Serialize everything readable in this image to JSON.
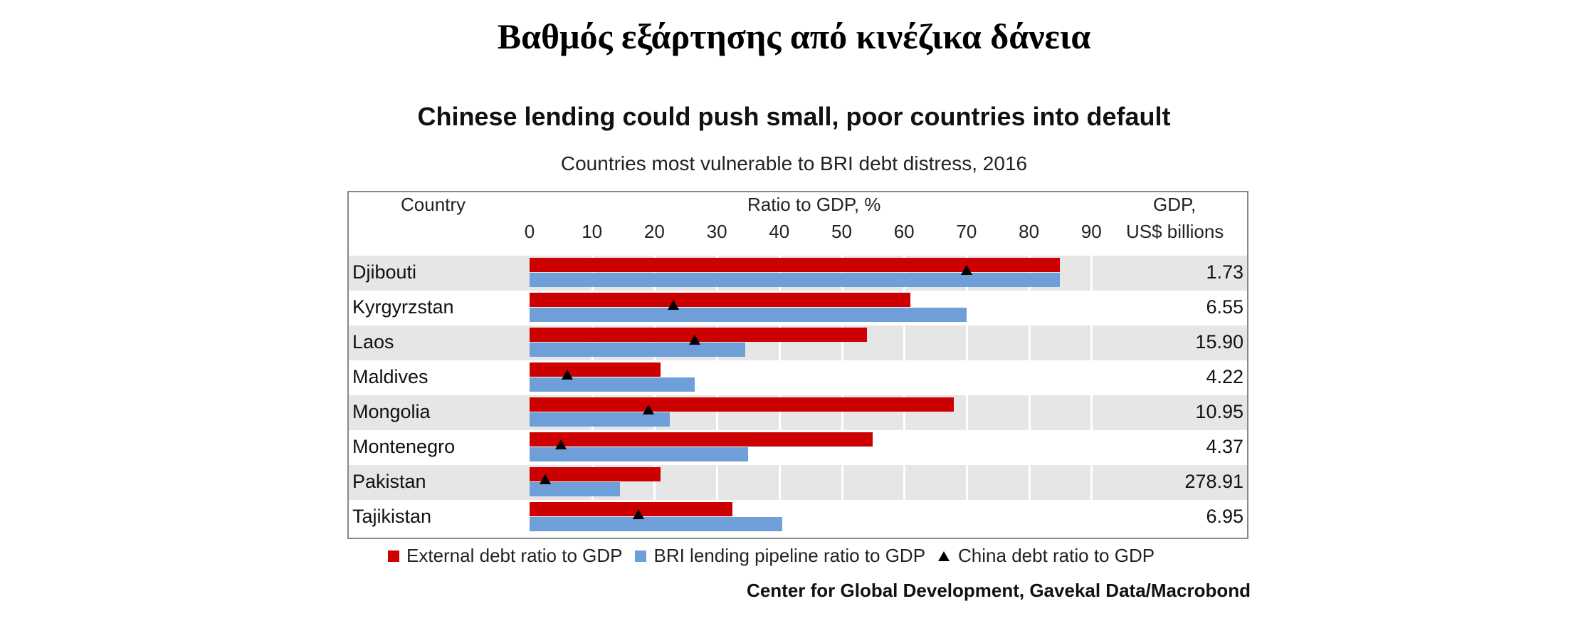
{
  "page": {
    "heading": "Βαθμός εξάρτησης από κινέζικα δάνεια"
  },
  "chart_data": {
    "type": "bar",
    "orientation": "horizontal",
    "title": "Chinese lending could push small, poor countries into default",
    "subtitle": "Countries most vulnerable to BRI debt distress, 2016",
    "column_headers": {
      "country": "Country",
      "ratio": "Ratio to GDP, %",
      "gdp_line1": "GDP,",
      "gdp_line2": "US$ billions"
    },
    "x_ticks": [
      "0",
      "10",
      "20",
      "30",
      "40",
      "50",
      "60",
      "70",
      "80",
      "90"
    ],
    "xlim": [
      0,
      90
    ],
    "grid": true,
    "categories": [
      "Djibouti",
      "Kyrgyrzstan",
      "Laos",
      "Maldives",
      "Mongolia",
      "Montenegro",
      "Pakistan",
      "Tajikistan"
    ],
    "series": [
      {
        "name": "External debt ratio to GDP",
        "color": "#cc0000",
        "values": [
          85,
          61,
          54,
          21,
          68,
          55,
          21,
          32.5
        ]
      },
      {
        "name": "BRI lending pipeline ratio to GDP",
        "color": "#6f9fd8",
        "values": [
          85,
          70,
          34.5,
          26.5,
          22.5,
          35,
          14.5,
          40.5
        ]
      },
      {
        "name": "China debt ratio to GDP",
        "color": "#000000",
        "marker": "triangle",
        "values": [
          70,
          23,
          26.5,
          6,
          19,
          5,
          2.5,
          17.5
        ]
      }
    ],
    "gdp_values": [
      "1.73",
      "6.55",
      "15.90",
      "4.22",
      "10.95",
      "4.37",
      "278.91",
      "6.95"
    ],
    "legend_position": "bottom",
    "source": "Center for Global Development, Gavekal Data/Macrobond"
  }
}
